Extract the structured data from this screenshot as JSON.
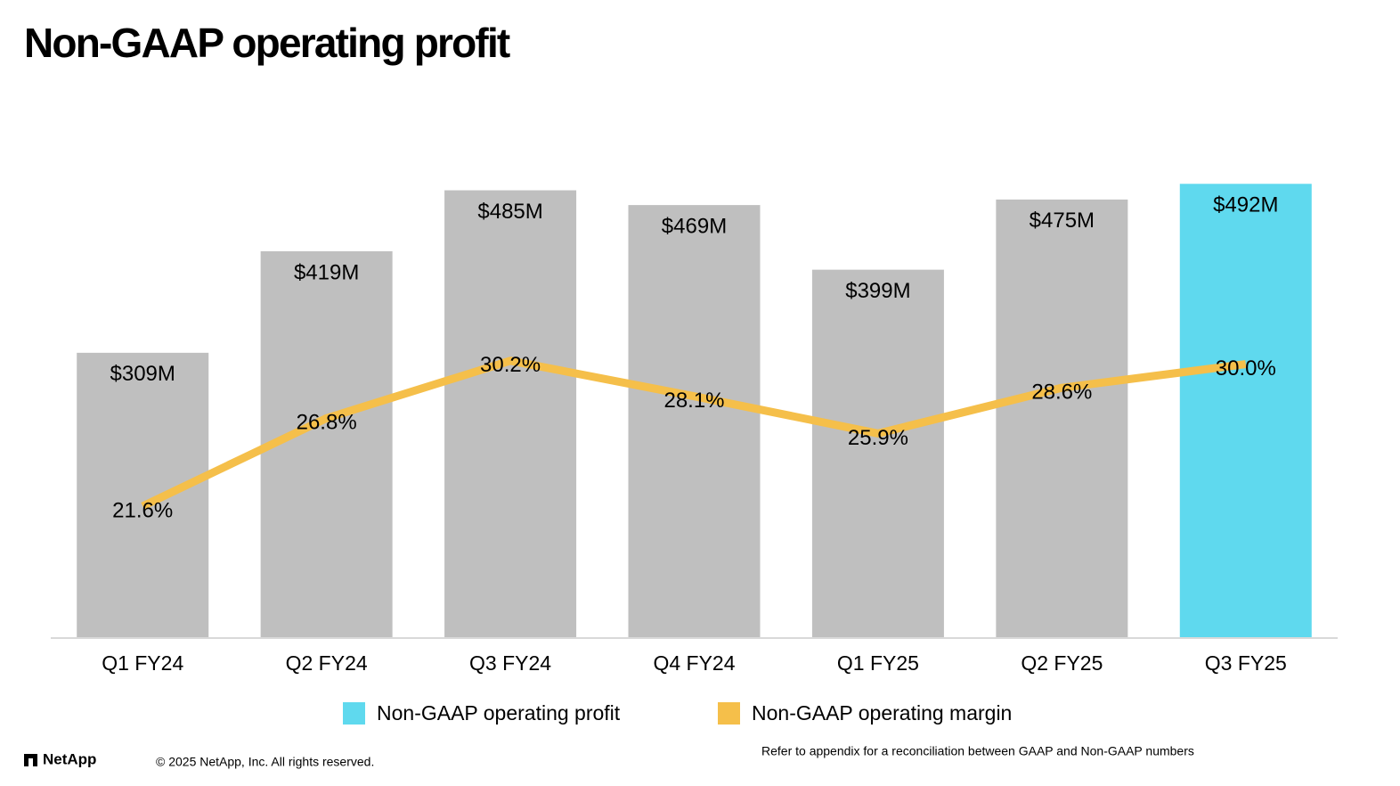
{
  "chart_data": {
    "type": "bar",
    "title": "Non-GAAP operating profit",
    "categories": [
      "Q1 FY24",
      "Q2 FY24",
      "Q3 FY24",
      "Q4 FY24",
      "Q1 FY25",
      "Q2 FY25",
      "Q3 FY25"
    ],
    "series": [
      {
        "name": "Non-GAAP operating profit",
        "type": "bar",
        "color": "#5fd9ee",
        "colors": [
          "#bfbfbf",
          "#bfbfbf",
          "#bfbfbf",
          "#bfbfbf",
          "#bfbfbf",
          "#bfbfbf",
          "#5fd9ee"
        ],
        "values": [
          309,
          419,
          485,
          469,
          399,
          475,
          492
        ],
        "value_labels": [
          "$309M",
          "$419M",
          "$485M",
          "$469M",
          "$399M",
          "$475M",
          "$492M"
        ]
      },
      {
        "name": "Non-GAAP operating margin",
        "type": "line",
        "axis": "y2",
        "color": "#f5bf4a",
        "values": [
          21.6,
          26.8,
          30.2,
          28.1,
          25.9,
          28.6,
          30.0
        ],
        "value_labels": [
          "21.6%",
          "26.8%",
          "30.2%",
          "28.1%",
          "25.9%",
          "28.6%",
          "30.0%"
        ]
      }
    ],
    "ylim": [
      0,
      500
    ],
    "y2lim": [
      13.8,
      41.1
    ]
  },
  "footer": {
    "logo": "NetApp",
    "copyright": "© 2025 NetApp, Inc. All rights reserved.",
    "note": "Refer to appendix for a reconciliation between GAAP and Non-GAAP numbers"
  }
}
